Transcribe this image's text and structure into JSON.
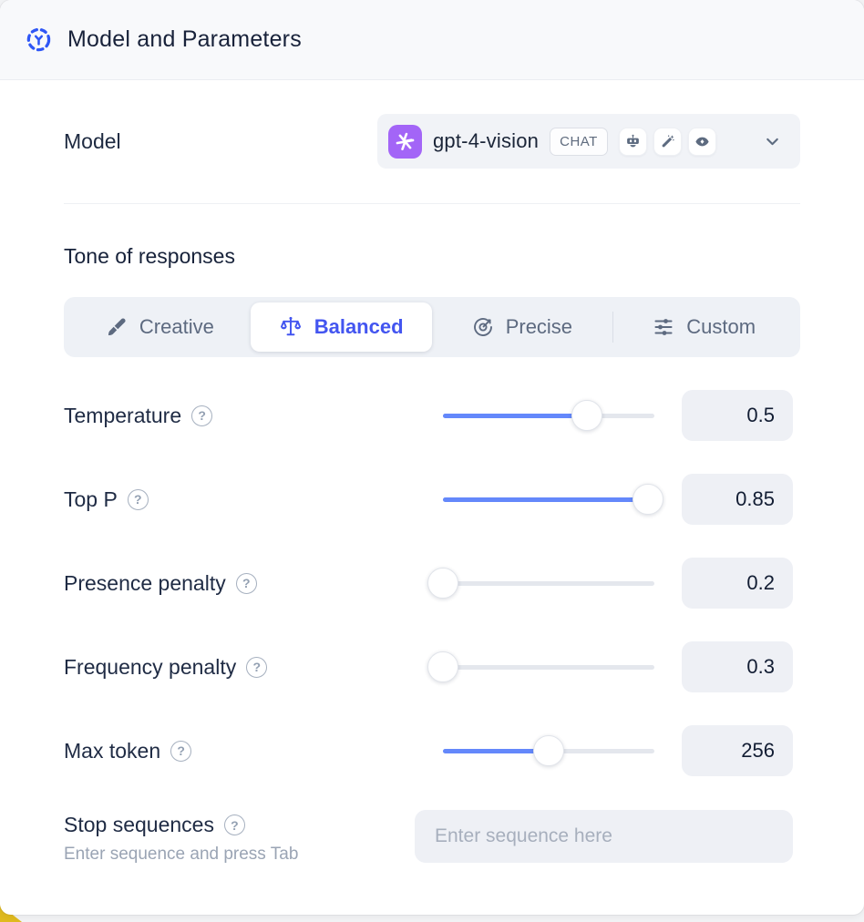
{
  "header": {
    "title": "Model and Parameters",
    "icon": "model-hub-icon"
  },
  "model": {
    "label": "Model",
    "selected": "gpt-4-vision",
    "badge": "CHAT",
    "provider": "openai",
    "provider_color": "#a365f7",
    "capability_icons": [
      "robot-icon",
      "magic-wand-icon",
      "vision-eye-icon"
    ]
  },
  "tone": {
    "heading": "Tone of responses",
    "selected_color": "#4355f0",
    "options": [
      {
        "label": "Creative",
        "icon": "brush-icon",
        "selected": false
      },
      {
        "label": "Balanced",
        "icon": "scales-icon",
        "selected": true
      },
      {
        "label": "Precise",
        "icon": "target-icon",
        "selected": false
      },
      {
        "label": "Custom",
        "icon": "sliders-icon",
        "selected": false
      }
    ]
  },
  "parameters": [
    {
      "label": "Temperature",
      "value": "0.5",
      "percent": 68
    },
    {
      "label": "Top P",
      "value": "0.85",
      "percent": 97
    },
    {
      "label": "Presence penalty",
      "value": "0.2",
      "percent": 0
    },
    {
      "label": "Frequency penalty",
      "value": "0.3",
      "percent": 0
    },
    {
      "label": "Max token",
      "value": "256",
      "percent": 50
    }
  ],
  "stop_sequences": {
    "label": "Stop sequences",
    "hint": "Enter sequence and press Tab",
    "placeholder": "Enter sequence here"
  },
  "help_glyph": "?",
  "colors": {
    "slider_fill": "#6488fb",
    "accent_indigo": "#4355f0",
    "header_icon_blue": "#2f57f6",
    "corner_accent_yellow": "#e0ba1f"
  }
}
